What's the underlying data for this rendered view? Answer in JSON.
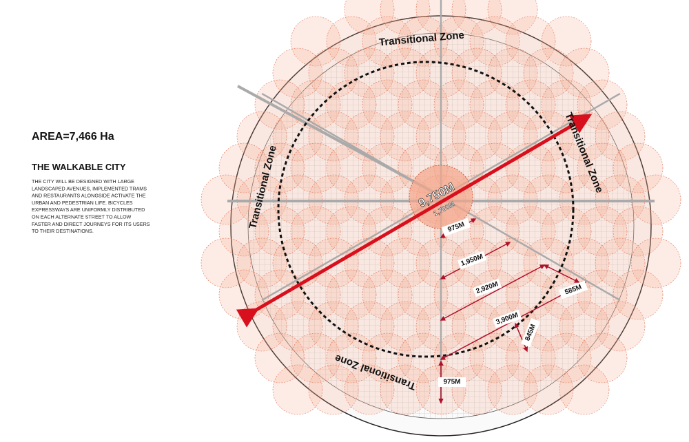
{
  "header": {
    "area": "AREA=7,466 Ha",
    "title": "THE WALKABLE CITY",
    "body": [
      "THE CITY WILL BE DESIGNED WITH LARGE",
      "LANDSCAPED AVENUES, IMPLEMENTED TRAMS",
      "AND RESTAURANTS ALONGSIDE ACTIVATE THE",
      "URBAN AND PEDESTRIAN LIFE. BICYCLES",
      "EXPRESSWAYS ARE UNIFORMLY DISTRIBUTED",
      "ON EACH ALTERNATE STREET TO ALLOW",
      "FASTER AND DIRECT JOURNEYS FOR ITS USERS",
      "TO THEIR DESTINATIONS."
    ]
  },
  "zones": [
    "Transitional Zone",
    "Transitional Zone",
    "Transitional Zone",
    "Transitional Zone"
  ],
  "measures": {
    "diameter": "9,750M",
    "center": "1,700M",
    "m1": "975M",
    "m2": "1,950M",
    "m3": "2,920M",
    "m4": "3,900M",
    "m5": "585M",
    "m6": "845M",
    "m7": "975M"
  }
}
